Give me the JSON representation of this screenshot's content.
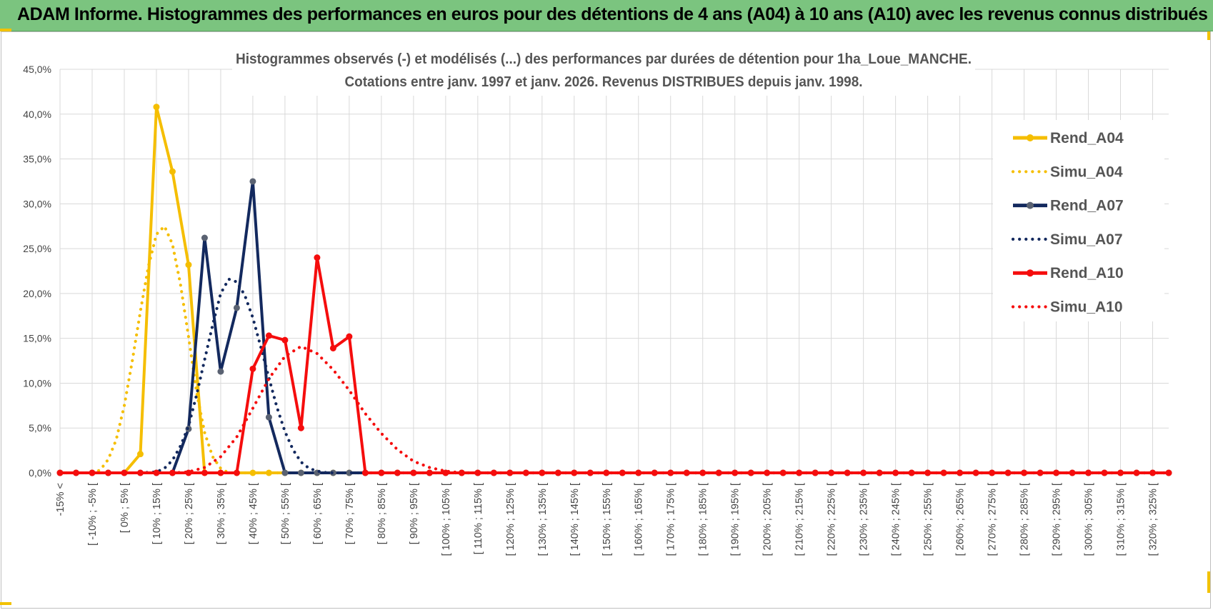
{
  "header": {
    "title": "ADAM Informe. Histogrammes des performances en euros pour des détentions de 4 ans (A04) à 10 ans (A10) avec les revenus connus distribués"
  },
  "chart_data": {
    "type": "line",
    "title": "Histogrammes observés (-) et modélisés (...) des performances par durées de détention pour 1ha_Loue_MANCHE.",
    "subtitle": "Cotations entre janv. 1997 et janv. 2026. Revenus DISTRIBUES depuis janv. 1998.",
    "xlabel": "",
    "ylabel": "",
    "ylim": [
      0,
      45
    ],
    "yticks": [
      "0,0%",
      "5,0%",
      "10,0%",
      "15,0%",
      "20,0%",
      "25,0%",
      "30,0%",
      "35,0%",
      "40,0%",
      "45,0%"
    ],
    "grid": true,
    "legend_position": "top-right",
    "colors": {
      "A04": "#f5be00",
      "A07": "#13295e",
      "A07_marker": "#5a6272",
      "A10": "#f50d0d"
    },
    "x_labels": [
      "-15% <",
      "[ -10% ; -5% [",
      "[ 0% ; 5% [",
      "[ 10% ; 15% [",
      "[ 20% ; 25% [",
      "[ 30% ; 35% [",
      "[ 40% ; 45% [",
      "[ 50% ; 55% [",
      "[ 60% ; 65% [",
      "[ 70% ; 75% [",
      "[ 80% ; 85% [",
      "[ 90% ; 95% [",
      "[ 100% ; 105% [",
      "[ 110% ; 115% [",
      "[ 120% ; 125% [",
      "[ 130% ; 135% [",
      "[ 140% ; 145% [",
      "[ 150% ; 155% [",
      "[ 160% ; 165% [",
      "[ 170% ; 175% [",
      "[ 180% ; 185% [",
      "[ 190% ; 195% [",
      "[ 200% ; 205% [",
      "[ 210% ; 215% [",
      "[ 220% ; 225% [",
      "[ 230% ; 235% [",
      "[ 240% ; 245% [",
      "[ 250% ; 255% [",
      "[ 260% ; 265% [",
      "[ 270% ; 275% [",
      "[ 280% ; 285% [",
      "[ 290% ; 295% [",
      "[ 300% ; 305% [",
      "[ 310% ; 315% [",
      "[ 320% ; 325% ["
    ],
    "series": [
      {
        "name": "Rend_A04",
        "style": "solid",
        "color": "#f5be00",
        "marker": true,
        "points": [
          [
            0,
            0
          ],
          [
            1,
            0
          ],
          [
            2,
            0
          ],
          [
            3,
            0
          ],
          [
            4,
            0
          ],
          [
            5,
            2.1
          ],
          [
            6,
            40.8
          ],
          [
            7,
            33.6
          ],
          [
            8,
            23.2
          ],
          [
            9,
            0
          ]
        ]
      },
      {
        "name": "Simu_A04",
        "style": "dotted",
        "color": "#f5be00",
        "marker": false,
        "points": [
          [
            0,
            0
          ],
          [
            1,
            0
          ],
          [
            2,
            0
          ],
          [
            2.5,
            0.3
          ],
          [
            3,
            1.5
          ],
          [
            3.5,
            3.7
          ],
          [
            4,
            7.5
          ],
          [
            4.5,
            12.5
          ],
          [
            5,
            18
          ],
          [
            5.5,
            23
          ],
          [
            6,
            26.6
          ],
          [
            6.5,
            27.5
          ],
          [
            7,
            25.5
          ],
          [
            7.5,
            21
          ],
          [
            8,
            15.2
          ],
          [
            8.5,
            9
          ],
          [
            9,
            4.5
          ],
          [
            9.5,
            1.8
          ],
          [
            10,
            0.5
          ],
          [
            10.5,
            0
          ]
        ]
      },
      {
        "name": "Rend_A07",
        "style": "solid",
        "color": "#13295e",
        "marker": true,
        "points": [
          [
            0,
            0
          ],
          [
            1,
            0
          ],
          [
            2,
            0
          ],
          [
            3,
            0
          ],
          [
            4,
            0
          ],
          [
            5,
            0
          ],
          [
            6,
            0
          ],
          [
            7,
            0
          ],
          [
            8,
            4.9
          ],
          [
            9,
            26.2
          ],
          [
            10,
            11.3
          ],
          [
            11,
            18.4
          ],
          [
            12,
            32.5
          ],
          [
            13,
            6.2
          ],
          [
            14,
            0
          ],
          [
            15,
            0
          ],
          [
            16,
            0
          ],
          [
            17,
            0
          ],
          [
            18,
            0
          ]
        ]
      },
      {
        "name": "Simu_A07",
        "style": "dotted",
        "color": "#13295e",
        "marker": false,
        "points": [
          [
            5,
            0
          ],
          [
            6,
            0.1
          ],
          [
            6.5,
            0.5
          ],
          [
            7,
            1.4
          ],
          [
            7.5,
            3
          ],
          [
            8,
            5.2
          ],
          [
            8.5,
            8.7
          ],
          [
            9,
            12.6
          ],
          [
            9.5,
            16.5
          ],
          [
            10,
            20
          ],
          [
            10.5,
            21.6
          ],
          [
            11,
            21.3
          ],
          [
            11.5,
            19.8
          ],
          [
            12,
            17.3
          ],
          [
            12.5,
            14
          ],
          [
            13,
            10.6
          ],
          [
            13.5,
            7.3
          ],
          [
            14,
            4.6
          ],
          [
            14.5,
            2.6
          ],
          [
            15,
            1.2
          ],
          [
            15.5,
            0.5
          ],
          [
            16,
            0.2
          ],
          [
            16.5,
            0.05
          ],
          [
            17,
            0
          ]
        ]
      },
      {
        "name": "Rend_A10",
        "style": "solid",
        "color": "#f50d0d",
        "marker": true,
        "points": [
          [
            0,
            0
          ],
          [
            1,
            0
          ],
          [
            2,
            0
          ],
          [
            3,
            0
          ],
          [
            4,
            0
          ],
          [
            5,
            0
          ],
          [
            6,
            0
          ],
          [
            7,
            0
          ],
          [
            8,
            0
          ],
          [
            9,
            0
          ],
          [
            10,
            0
          ],
          [
            11,
            0
          ],
          [
            12,
            11.6
          ],
          [
            13,
            15.3
          ],
          [
            14,
            14.8
          ],
          [
            15,
            5
          ],
          [
            16,
            24
          ],
          [
            17,
            13.9
          ],
          [
            18,
            15.2
          ],
          [
            19,
            0
          ]
        ]
      },
      {
        "name": "Simu_A10",
        "style": "dotted",
        "color": "#f50d0d",
        "marker": false,
        "points": [
          [
            7,
            0
          ],
          [
            8,
            0.1
          ],
          [
            9,
            0.6
          ],
          [
            10,
            1.8
          ],
          [
            11,
            4
          ],
          [
            12,
            7.2
          ],
          [
            13,
            10.5
          ],
          [
            14,
            13
          ],
          [
            15,
            14.1
          ],
          [
            16,
            13.3
          ],
          [
            17,
            11.5
          ],
          [
            18,
            9.2
          ],
          [
            19,
            6.6
          ],
          [
            20,
            4.4
          ],
          [
            21,
            2.6
          ],
          [
            22,
            1.3
          ],
          [
            23,
            0.6
          ],
          [
            24,
            0.2
          ],
          [
            25,
            0
          ]
        ]
      }
    ],
    "x_count": 70
  }
}
